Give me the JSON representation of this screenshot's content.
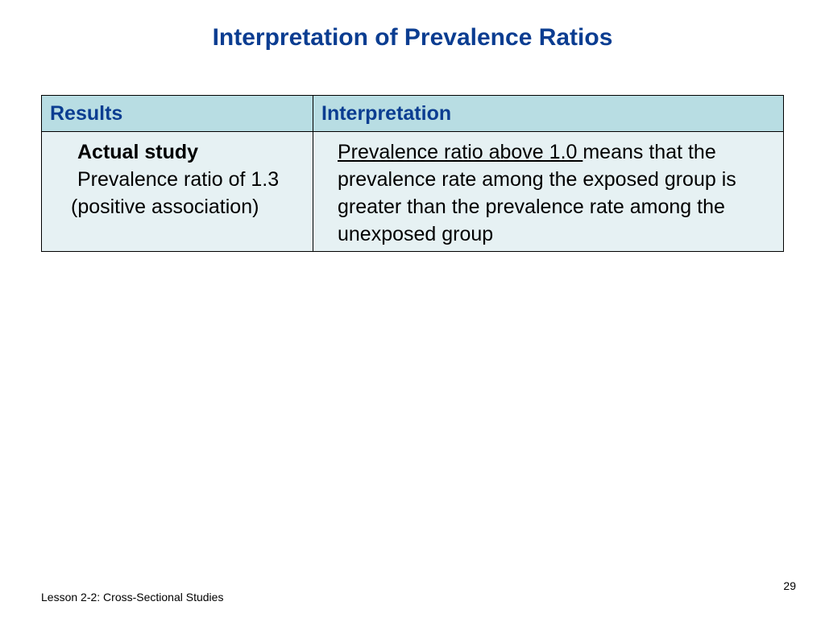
{
  "slide": {
    "title": "Interpretation of Prevalence Ratios",
    "number": "29",
    "footer": "Lesson 2-2: Cross-Sectional Studies"
  },
  "table": {
    "headers": {
      "results": "Results",
      "interpretation": "Interpretation"
    },
    "rows": [
      {
        "result_label": "Actual study",
        "result_text": "Prevalence ratio of 1.3 (positive association)",
        "interp_underlined": "Prevalence ratio above 1.0 ",
        "interp_text": "means that the prevalence rate among the exposed group is greater than the prevalence rate among the unexposed group"
      }
    ]
  },
  "colors": {
    "title": "#0b3d91",
    "header_bg": "#b8dde3",
    "cell_bg": "#e6f1f3"
  }
}
